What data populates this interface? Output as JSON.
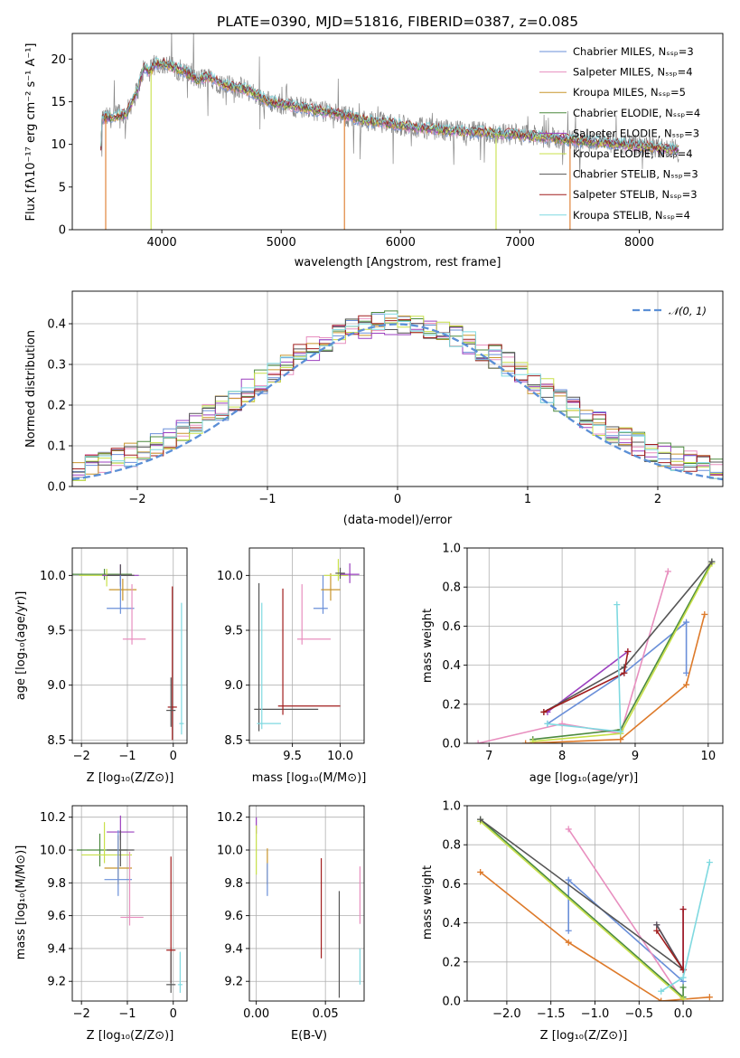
{
  "chart_data": [
    {
      "type": "line",
      "title": "PLATE=0390, MJD=51816, FIBERID=0387, z=0.085",
      "xlabel": "wavelength [Angstrom, rest frame]",
      "ylabel": "Flux [fλ10⁻¹⁷ erg cm⁻² s⁻¹ A⁻¹]",
      "xlim": [
        3250,
        8700
      ],
      "ylim": [
        0,
        23
      ],
      "xticks": [
        4000,
        5000,
        6000,
        7000,
        8000
      ],
      "yticks": [
        0,
        5,
        10,
        15,
        20
      ],
      "legend_position": "upper right",
      "legend": [
        {
          "label": "Chabrier MILES, Nₛₛₚ=3",
          "color": "#6a8fd9"
        },
        {
          "label": "Salpeter MILES, Nₛₛₚ=4",
          "color": "#e88fbf"
        },
        {
          "label": "Kroupa MILES, Nₛₛₚ=5",
          "color": "#c8952c"
        },
        {
          "label": "Chabrier ELODIE, Nₛₛₚ=4",
          "color": "#4c8a3f"
        },
        {
          "label": "Salpeter ELODIE, Nₛₛₚ=3",
          "color": "#9b3fbf"
        },
        {
          "label": "Kroupa ELODIE, Nₛₛₚ=4",
          "color": "#c8e04a"
        },
        {
          "label": "Chabrier STELIB, Nₛₛₚ=3",
          "color": "#555555"
        },
        {
          "label": "Salpeter STELIB, Nₛₛₚ=3",
          "color": "#a11d1d"
        },
        {
          "label": "Kroupa STELIB, Nₛₛₚ=4",
          "color": "#7fd9e0"
        }
      ],
      "spectrum_continuum": {
        "x": [
          3500,
          3700,
          3800,
          3850,
          3900,
          3950,
          4000,
          4100,
          4200,
          4300,
          4400,
          4500,
          4700,
          4900,
          5100,
          5300,
          5500,
          5700,
          5900,
          6100,
          6300,
          6500,
          6700,
          6900,
          7100,
          7300,
          7500,
          7700,
          8000,
          8300
        ],
        "y": [
          13.0,
          13.5,
          16.5,
          19.0,
          18.5,
          19.5,
          19.5,
          19.0,
          18.5,
          17.5,
          18.0,
          17.0,
          16.5,
          15.0,
          14.5,
          14.0,
          13.5,
          12.8,
          12.5,
          12.0,
          11.8,
          11.5,
          11.4,
          11.2,
          11.0,
          10.7,
          10.4,
          10.2,
          9.8,
          9.4
        ]
      },
      "spectrum_dips": [
        {
          "x": 3530,
          "y": 0
        },
        {
          "x": 3910,
          "y": 0
        },
        {
          "x": 5530,
          "y": 0
        },
        {
          "x": 6800,
          "y": 0
        },
        {
          "x": 7420,
          "y": 0
        }
      ]
    },
    {
      "type": "bar",
      "subtype": "step-histogram",
      "xlabel": "(data-model)/error",
      "ylabel": "Normed distribution",
      "xlim": [
        -2.5,
        2.5
      ],
      "ylim": [
        0,
        0.48
      ],
      "xticks": [
        -2,
        -1,
        0,
        1,
        2
      ],
      "yticks": [
        0.0,
        0.1,
        0.2,
        0.3,
        0.4
      ],
      "grid": true,
      "legend_position": "upper right",
      "legend": [
        {
          "label": "𝒩(0, 1)",
          "color": "#5b8fd6"
        }
      ],
      "bin_edges_range": [
        -2.5,
        2.5
      ],
      "bins": 50
    },
    {
      "type": "scatter",
      "subtype": "error-crosses",
      "xlabel": "Z [log₁₀(Z/Z⊙)]",
      "ylabel": "age  [log₁₀(age/yr)]",
      "xlim": [
        -2.2,
        0.3
      ],
      "ylim": [
        8.47,
        10.25
      ],
      "xticks": [
        -2,
        -1,
        0
      ],
      "yticks": [
        8.5,
        9.0,
        9.5,
        10.0
      ]
    },
    {
      "type": "scatter",
      "subtype": "error-crosses",
      "xlabel": "mass [log₁₀(M/M⊙)]",
      "xlim": [
        9.05,
        10.25
      ],
      "ylim": [
        8.47,
        10.25
      ],
      "xticks": [
        9.5,
        10.0
      ],
      "yticks": [
        8.5,
        9.0,
        9.5,
        10.0
      ]
    },
    {
      "type": "line",
      "xlabel": "age  [log₁₀(age/yr)]",
      "ylabel": "mass weight",
      "xlim": [
        6.7,
        10.2
      ],
      "ylim": [
        0,
        1.0
      ],
      "xticks": [
        7,
        8,
        9,
        10
      ],
      "yticks": [
        0.0,
        0.2,
        0.4,
        0.6,
        0.8,
        1.0
      ],
      "grid": true,
      "series": [
        {
          "color": "#6a8fd9",
          "x": [
            7.8,
            8.85,
            9.7,
            9.7
          ],
          "y": [
            0.1,
            0.36,
            0.62,
            0.36
          ]
        },
        {
          "color": "#e88fbf",
          "x": [
            6.85,
            8.0,
            8.8,
            9.45
          ],
          "y": [
            0.0,
            0.1,
            0.05,
            0.88
          ]
        },
        {
          "color": "#dd7a2a",
          "x": [
            7.5,
            8.8,
            9.7,
            9.95
          ],
          "y": [
            0.0,
            0.02,
            0.3,
            0.66
          ]
        },
        {
          "color": "#4c8a3f",
          "x": [
            7.6,
            8.8,
            10.05
          ],
          "y": [
            0.02,
            0.07,
            0.93
          ]
        },
        {
          "color": "#9b3fbf",
          "x": [
            7.8,
            8.9
          ],
          "y": [
            0.16,
            0.47
          ]
        },
        {
          "color": "#c8e04a",
          "x": [
            7.6,
            8.8,
            10.05
          ],
          "y": [
            0.01,
            0.05,
            0.92
          ]
        },
        {
          "color": "#555555",
          "x": [
            7.75,
            8.85,
            10.05
          ],
          "y": [
            0.16,
            0.39,
            0.93
          ]
        },
        {
          "color": "#a11d1d",
          "x": [
            7.75,
            8.85,
            8.9
          ],
          "y": [
            0.16,
            0.36,
            0.47
          ]
        },
        {
          "color": "#7fd9e0",
          "x": [
            7.8,
            8.8,
            8.75
          ],
          "y": [
            0.1,
            0.06,
            0.71
          ]
        }
      ]
    },
    {
      "type": "scatter",
      "subtype": "error-crosses",
      "xlabel": "Z [log₁₀(Z/Z⊙)]",
      "ylabel": "mass [log₁₀(M/M⊙)]",
      "xlim": [
        -2.2,
        0.3
      ],
      "ylim": [
        9.08,
        10.27
      ],
      "xticks": [
        -2,
        -1,
        0
      ],
      "yticks": [
        9.2,
        9.4,
        9.6,
        9.8,
        10.0,
        10.2
      ]
    },
    {
      "type": "scatter",
      "subtype": "error-bars",
      "xlabel": "E(B-V)",
      "xlim": [
        -0.005,
        0.078
      ],
      "ylim": [
        9.08,
        10.27
      ],
      "xticks": [
        0.0,
        0.05
      ],
      "yticks": [
        9.2,
        9.4,
        9.6,
        9.8,
        10.0,
        10.2
      ]
    },
    {
      "type": "line",
      "xlabel": "Z [log₁₀(Z/Z⊙)]",
      "ylabel": "mass weight",
      "xlim": [
        -2.45,
        0.45
      ],
      "ylim": [
        0,
        1.0
      ],
      "xticks": [
        -2.0,
        -1.5,
        -1.0,
        -0.5,
        0.0
      ],
      "yticks": [
        0.0,
        0.2,
        0.4,
        0.6,
        0.8,
        1.0
      ],
      "grid": true,
      "series": [
        {
          "color": "#6a8fd9",
          "x": [
            -1.3,
            -1.3,
            0.0
          ],
          "y": [
            0.36,
            0.62,
            0.1
          ]
        },
        {
          "color": "#e88fbf",
          "x": [
            -1.3,
            0.0
          ],
          "y": [
            0.88,
            0.0
          ]
        },
        {
          "color": "#dd7a2a",
          "x": [
            -2.3,
            -1.3,
            -0.25,
            0.3
          ],
          "y": [
            0.66,
            0.3,
            0.0,
            0.02
          ]
        },
        {
          "color": "#4c8a3f",
          "x": [
            -2.3,
            0.0,
            0.0
          ],
          "y": [
            0.93,
            0.02,
            0.07
          ]
        },
        {
          "color": "#9b3fbf",
          "x": [
            -0.3,
            0.0,
            0.0
          ],
          "y": [
            0.39,
            0.16,
            0.47
          ]
        },
        {
          "color": "#c8e04a",
          "x": [
            -2.3,
            0.0
          ],
          "y": [
            0.92,
            0.01
          ]
        },
        {
          "color": "#555555",
          "x": [
            -2.3,
            0.0,
            -0.3
          ],
          "y": [
            0.93,
            0.16,
            0.39
          ]
        },
        {
          "color": "#a11d1d",
          "x": [
            -0.3,
            0.0,
            0.0
          ],
          "y": [
            0.36,
            0.16,
            0.47
          ]
        },
        {
          "color": "#7fd9e0",
          "x": [
            -0.25,
            0.0,
            0.3
          ],
          "y": [
            0.05,
            0.12,
            0.71
          ]
        }
      ]
    }
  ],
  "labels": {
    "title": "PLATE=0390, MJD=51816, FIBERID=0387, z=0.085",
    "flux_ylabel": "Flux [fλ10⁻¹⁷ erg cm⁻² s⁻¹ A⁻¹]",
    "wave_xlabel": "wavelength [Angstrom, rest frame]",
    "hist_ylabel": "Normed distribution",
    "hist_xlabel": "(data-model)/error",
    "hist_legend": "𝒩(0, 1)",
    "age_ylabel": "age  [log₁₀(age/yr)]",
    "z_xlabel": "Z [log₁₀(Z/Z⊙)]",
    "mass_xlabel": "mass [log₁₀(M/M⊙)]",
    "mw_ylabel": "mass weight",
    "age_xlabel": "age  [log₁₀(age/yr)]",
    "mass_ylabel": "mass [log₁₀(M/M⊙)]",
    "ebv_xlabel": "E(B-V)"
  }
}
